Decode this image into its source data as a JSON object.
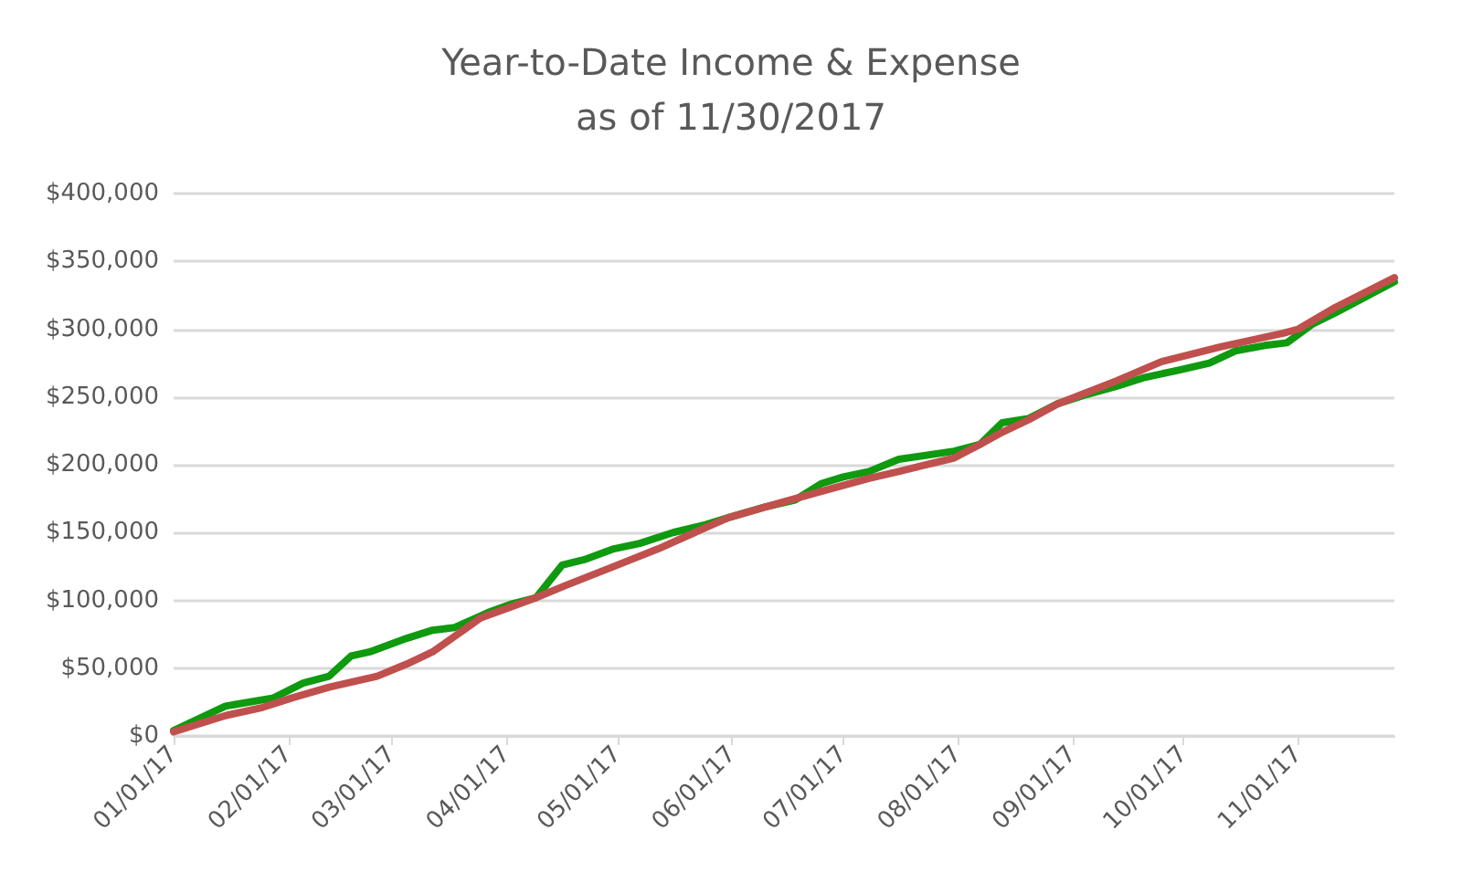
{
  "chart_data": {
    "type": "line",
    "title": "Year-to-Date Income & Expense\nas of 11/30/2017",
    "xlim": [
      "2017-01-01",
      "2017-11-27"
    ],
    "xticks": [
      {
        "value": "2017-01-01",
        "label": "01/01/17"
      },
      {
        "value": "2017-02-01",
        "label": "02/01/17"
      },
      {
        "value": "2017-03-01",
        "label": "03/01/17"
      },
      {
        "value": "2017-04-01",
        "label": "04/01/17"
      },
      {
        "value": "2017-05-01",
        "label": "05/01/17"
      },
      {
        "value": "2017-06-01",
        "label": "06/01/17"
      },
      {
        "value": "2017-07-01",
        "label": "07/01/17"
      },
      {
        "value": "2017-08-01",
        "label": "08/01/17"
      },
      {
        "value": "2017-09-01",
        "label": "09/01/17"
      },
      {
        "value": "2017-10-01",
        "label": "10/01/17"
      },
      {
        "value": "2017-11-01",
        "label": "11/01/17"
      }
    ],
    "ylim": [
      0,
      400000
    ],
    "yticks": [
      {
        "value": 0,
        "label": "$0"
      },
      {
        "value": 50000,
        "label": "$50,000"
      },
      {
        "value": 100000,
        "label": "$100,000"
      },
      {
        "value": 150000,
        "label": "$150,000"
      },
      {
        "value": 200000,
        "label": "$200,000"
      },
      {
        "value": 250000,
        "label": "$250,000"
      },
      {
        "value": 300000,
        "label": "$300,000"
      },
      {
        "value": 350000,
        "label": "$350,000"
      },
      {
        "value": 400000,
        "label": "$400,000"
      }
    ],
    "grid": "y",
    "marker": "none",
    "line_style": "solid",
    "series": [
      {
        "color": "#0f9a0f",
        "x": [
          "2017-01-01",
          "2017-01-15",
          "2017-01-28",
          "2017-02-05",
          "2017-02-12",
          "2017-02-18",
          "2017-02-23",
          "2017-03-05",
          "2017-03-12",
          "2017-03-18",
          "2017-03-27",
          "2017-04-02",
          "2017-04-09",
          "2017-04-16",
          "2017-04-22",
          "2017-04-30",
          "2017-05-07",
          "2017-05-16",
          "2017-05-25",
          "2017-05-31",
          "2017-06-10",
          "2017-06-18",
          "2017-06-25",
          "2017-07-01",
          "2017-07-08",
          "2017-07-16",
          "2017-07-31",
          "2017-08-07",
          "2017-08-13",
          "2017-08-20",
          "2017-08-28",
          "2017-09-05",
          "2017-09-13",
          "2017-09-20",
          "2017-09-30",
          "2017-10-08",
          "2017-10-15",
          "2017-10-23",
          "2017-10-29",
          "2017-11-05",
          "2017-11-11",
          "2017-11-27"
        ],
        "values": [
          4000,
          22000,
          28000,
          39000,
          44000,
          59000,
          62000,
          72000,
          78000,
          80000,
          91000,
          97000,
          102000,
          126000,
          130000,
          138000,
          142000,
          150000,
          156000,
          161000,
          169000,
          174000,
          186000,
          191000,
          195000,
          204000,
          210000,
          215000,
          231000,
          234000,
          245000,
          252000,
          258000,
          264000,
          270000,
          275000,
          284000,
          288000,
          290000,
          304000,
          312000,
          335000
        ]
      },
      {
        "color": "#c0504d",
        "x": [
          "2017-01-01",
          "2017-01-15",
          "2017-01-25",
          "2017-02-02",
          "2017-02-12",
          "2017-02-25",
          "2017-03-05",
          "2017-03-12",
          "2017-03-25",
          "2017-04-02",
          "2017-04-09",
          "2017-04-17",
          "2017-04-30",
          "2017-05-12",
          "2017-05-21",
          "2017-05-31",
          "2017-06-14",
          "2017-06-26",
          "2017-07-08",
          "2017-07-16",
          "2017-07-31",
          "2017-08-07",
          "2017-08-13",
          "2017-08-20",
          "2017-08-28",
          "2017-09-13",
          "2017-09-25",
          "2017-10-11",
          "2017-10-28",
          "2017-11-01",
          "2017-11-11",
          "2017-11-27"
        ],
        "values": [
          3000,
          15000,
          21000,
          28000,
          36000,
          44000,
          53000,
          62000,
          87000,
          95000,
          102000,
          111000,
          125000,
          138000,
          149000,
          161000,
          172000,
          181000,
          190000,
          195000,
          205000,
          215000,
          224000,
          233000,
          245000,
          262000,
          276000,
          287000,
          297000,
          300000,
          316000,
          338000
        ]
      }
    ]
  }
}
